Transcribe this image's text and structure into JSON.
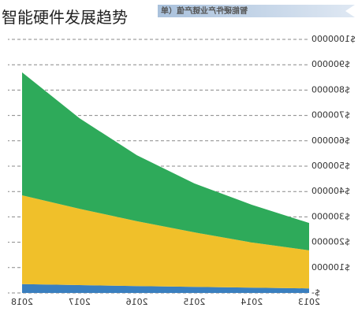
{
  "header": {
    "title": "智能硬件发展趋势"
  },
  "chart_data": {
    "type": "area",
    "title": "智能硬件产业链产值（单",
    "categories": [
      "2013",
      "2014",
      "2015",
      "2016",
      "2017",
      "2018"
    ],
    "series": [
      {
        "color": "#3a7fbf",
        "values": [
          18000,
          21000,
          24000,
          27000,
          31000,
          35000
        ]
      },
      {
        "color": "#f0c02a",
        "values": [
          150000,
          178000,
          215000,
          256000,
          301000,
          350000
        ]
      },
      {
        "color": "#2eaa5a",
        "values": [
          108000,
          149000,
          193000,
          260000,
          357000,
          485000
        ]
      }
    ],
    "ylim": [
      0,
      1000000
    ],
    "yticks": [
      {
        "value": 0,
        "label": "$-"
      },
      {
        "value": 100000,
        "label": "$100000"
      },
      {
        "value": 200000,
        "label": "$200000"
      },
      {
        "value": 300000,
        "label": "$300000"
      },
      {
        "value": 400000,
        "label": "$400000"
      },
      {
        "value": 500000,
        "label": "$500000"
      },
      {
        "value": 600000,
        "label": "$600000"
      },
      {
        "value": 700000,
        "label": "$700000"
      },
      {
        "value": 800000,
        "label": "$800000"
      },
      {
        "value": 900000,
        "label": "$900000"
      },
      {
        "value": 1000000,
        "label": "$1000000"
      }
    ],
    "grid": true,
    "stacked": true,
    "mirrored": true
  }
}
